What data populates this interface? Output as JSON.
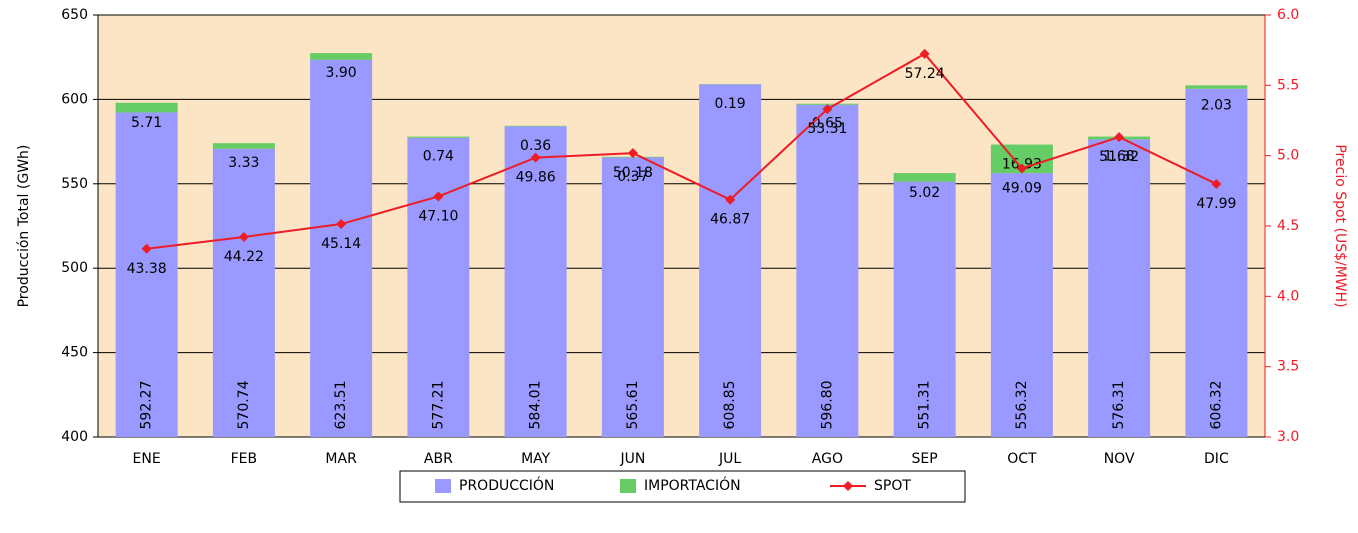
{
  "chart_data": {
    "type": "bar",
    "stacked": true,
    "categories": [
      "ENE",
      "FEB",
      "MAR",
      "ABR",
      "MAY",
      "JUN",
      "JUL",
      "AGO",
      "SEP",
      "OCT",
      "NOV",
      "DIC"
    ],
    "y_label": "Producción Total (GWh)",
    "y2_label": "Precio Spot (US$/MWH)",
    "ylim": [
      400,
      650
    ],
    "yticks": [
      400,
      450,
      500,
      550,
      600,
      650
    ],
    "y2lim": [
      3,
      6
    ],
    "y2ticks": [
      {
        "value": 3,
        "label": "3.0"
      },
      3.5,
      {
        "value": 4,
        "label": "4.0"
      },
      4.5,
      {
        "value": 5,
        "label": "5.0"
      },
      5.5,
      {
        "value": 6,
        "label": "6.0"
      }
    ],
    "grid": true,
    "series": [
      {
        "name": "PRODUCCIÓN",
        "type": "bar",
        "color": "#9999ff",
        "values": [
          592.27,
          570.74,
          623.51,
          577.21,
          584.01,
          565.61,
          608.85,
          596.8,
          551.31,
          556.32,
          576.31,
          606.32
        ],
        "value_labels": [
          "592.27",
          "570.74",
          "623.51",
          "577.21",
          "584.01",
          "565.61",
          "608.85",
          "596.80",
          "551.31",
          "556.32",
          "576.31",
          "606.32"
        ]
      },
      {
        "name": "IMPORTACIÓN",
        "type": "bar",
        "color": "#66cc66",
        "values": [
          5.71,
          3.33,
          3.9,
          0.74,
          0.36,
          0.37,
          0.19,
          0.65,
          5.02,
          16.93,
          1.68,
          2.03
        ],
        "value_labels": [
          "5.71",
          "3.33",
          "3.90",
          "0.74",
          "0.36",
          "0.37",
          "0.19",
          "0.65",
          "5.02",
          "16.93",
          "1.68",
          "2.03"
        ]
      },
      {
        "name": "SPOT",
        "type": "line",
        "axis": "y2",
        "color": "#ee1c25",
        "values": [
          4.338,
          4.422,
          4.514,
          4.71,
          4.986,
          5.018,
          4.687,
          5.331,
          5.724,
          4.909,
          5.132,
          4.799
        ],
        "value_labels": [
          "43.38",
          "44.22",
          "45.14",
          "47.10",
          "49.86",
          "50.18",
          "46.87",
          "53.31",
          "57.24",
          "49.09",
          "51.32",
          "47.99"
        ]
      }
    ]
  }
}
